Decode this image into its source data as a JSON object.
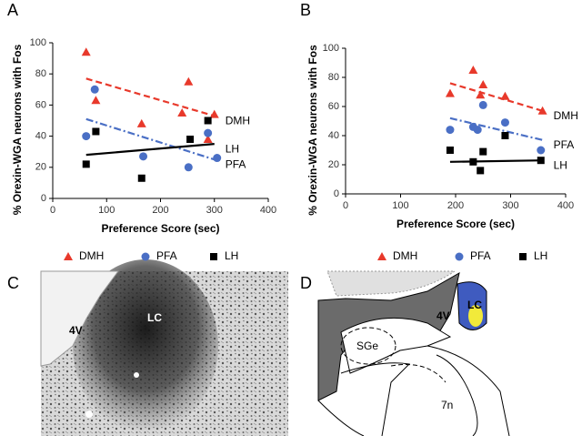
{
  "panel_labels": [
    "A",
    "B",
    "C",
    "D"
  ],
  "chart_data": [
    {
      "type": "scatter",
      "ylabel": "% Orexin-WGA neurons with Fos",
      "xlabel": "Preference Score (sec)",
      "xlim": [
        0,
        400
      ],
      "xticks": [
        0,
        100,
        200,
        300,
        400
      ],
      "ylim": [
        0,
        100
      ],
      "yticks": [
        0,
        20,
        40,
        60,
        80,
        100
      ],
      "series": [
        {
          "name": "DMH",
          "color": "#e8392b",
          "marker": "triangle",
          "line_style": "dashed",
          "x": [
            62,
            80,
            165,
            240,
            252,
            300,
            288
          ],
          "values": [
            94,
            63,
            48,
            55,
            75,
            54,
            38
          ],
          "trend_x": [
            62,
            300
          ],
          "trend_y": [
            77,
            53
          ]
        },
        {
          "name": "PFA",
          "color": "#4a6fc5",
          "marker": "circle",
          "line_style": "dashdot",
          "x": [
            62,
            78,
            168,
            252,
            288,
            305
          ],
          "values": [
            40,
            70,
            27,
            20,
            42,
            26
          ],
          "trend_x": [
            62,
            300
          ],
          "trend_y": [
            51,
            25
          ]
        },
        {
          "name": "LH",
          "color": "#000000",
          "marker": "square",
          "line_style": "solid",
          "x": [
            62,
            80,
            165,
            255,
            288
          ],
          "values": [
            22,
            43,
            13,
            38,
            50
          ],
          "trend_x": [
            62,
            300
          ],
          "trend_y": [
            28,
            35
          ]
        }
      ]
    },
    {
      "type": "scatter",
      "ylabel": "% Orexin-WGA neurons with Fos",
      "xlabel": "Preference Score (sec)",
      "xlim": [
        0,
        400
      ],
      "xticks": [
        0,
        100,
        200,
        300,
        400
      ],
      "ylim": [
        0,
        100
      ],
      "yticks": [
        0,
        20,
        40,
        60,
        80,
        100
      ],
      "series": [
        {
          "name": "DMH",
          "color": "#e8392b",
          "marker": "triangle",
          "line_style": "dashed",
          "x": [
            190,
            232,
            245,
            250,
            290,
            358
          ],
          "values": [
            69,
            85,
            68,
            75,
            67,
            57
          ],
          "trend_x": [
            190,
            358
          ],
          "trend_y": [
            76,
            57
          ]
        },
        {
          "name": "PFA",
          "color": "#4a6fc5",
          "marker": "circle",
          "line_style": "dashdot",
          "x": [
            190,
            232,
            240,
            250,
            290,
            355
          ],
          "values": [
            44,
            46,
            44,
            61,
            49,
            30
          ],
          "trend_x": [
            190,
            358
          ],
          "trend_y": [
            52,
            37
          ]
        },
        {
          "name": "LH",
          "color": "#000000",
          "marker": "square",
          "line_style": "solid",
          "x": [
            190,
            232,
            245,
            250,
            290,
            355
          ],
          "values": [
            30,
            22,
            16,
            29,
            40,
            23
          ],
          "trend_x": [
            190,
            358
          ],
          "trend_y": [
            22,
            23
          ]
        }
      ]
    }
  ],
  "micrograph": {
    "labels": [
      "4V",
      "LC"
    ]
  },
  "diagram": {
    "labels": [
      "4V",
      "LC",
      "SGe",
      "7n"
    ]
  }
}
